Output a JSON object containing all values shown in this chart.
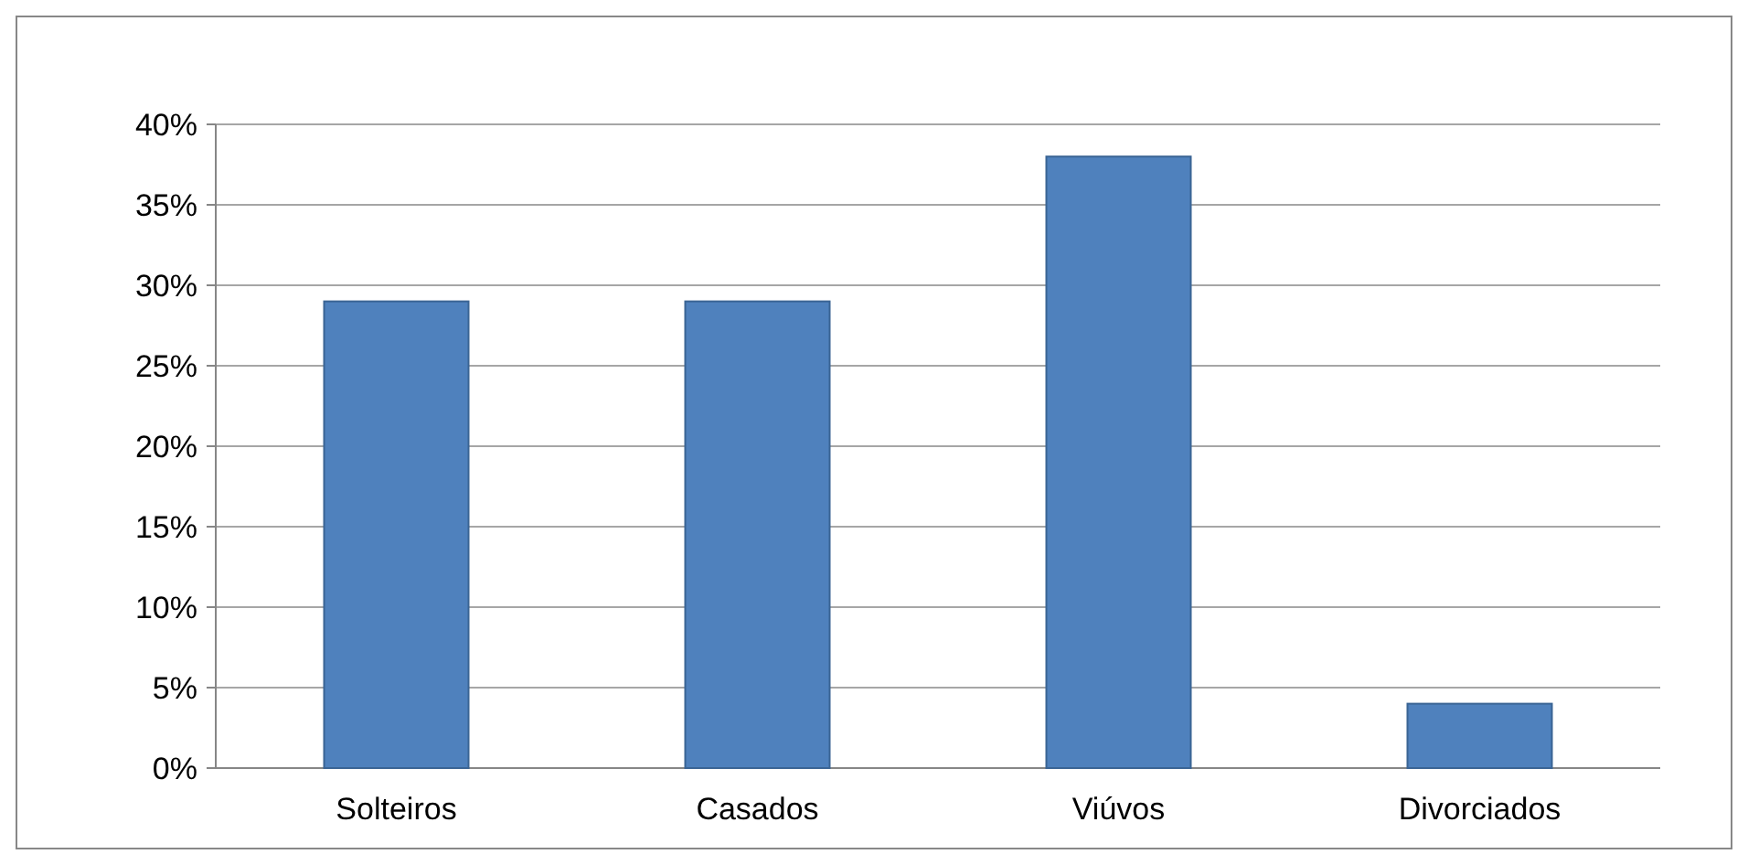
{
  "chart_data": {
    "type": "bar",
    "categories": [
      "Solteiros",
      "Casados",
      "Viúvos",
      "Divorciados"
    ],
    "values": [
      29,
      29,
      38,
      4
    ],
    "color": "#4f81bd",
    "ylim": [
      0,
      40
    ],
    "yticks": [
      {
        "value": 0,
        "label": "0%"
      },
      {
        "value": 5,
        "label": "5%"
      },
      {
        "value": 10,
        "label": "10%"
      },
      {
        "value": 15,
        "label": "15%"
      },
      {
        "value": 20,
        "label": "20%"
      },
      {
        "value": 25,
        "label": "25%"
      },
      {
        "value": 30,
        "label": "30%"
      },
      {
        "value": 35,
        "label": "35%"
      },
      {
        "value": 40,
        "label": "40%"
      }
    ],
    "grid": true
  }
}
